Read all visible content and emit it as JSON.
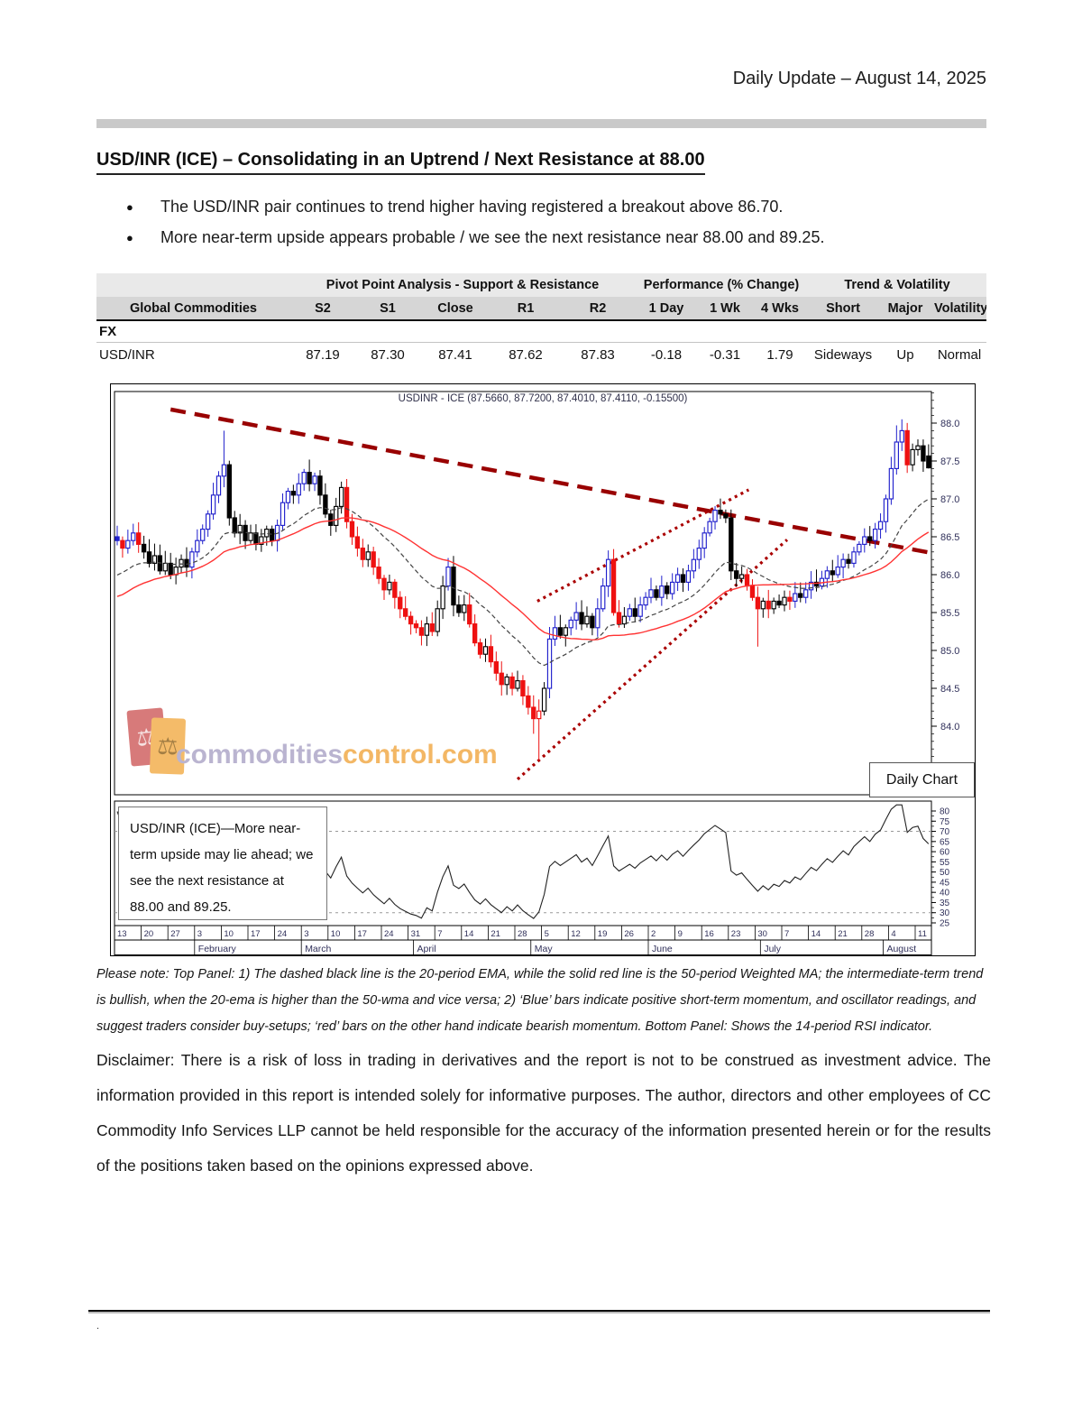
{
  "header": {
    "title": "Daily Update – August 14, 2025"
  },
  "headline": {
    "text": "USD/INR (ICE) – Consolidating in an Uptrend / Next Resistance at 88.00"
  },
  "bullets": [
    "The USD/INR pair continues to trend higher having registered a breakout above 86.70.",
    "More near-term upside appears probable / we see the next resistance near 88.00 and 89.25."
  ],
  "table": {
    "groups": [
      "Pivot Point Analysis - Support & Resistance",
      "Performance (% Change)",
      "Trend & Volatility"
    ],
    "columns": [
      "Global Commodities",
      "S2",
      "S1",
      "Close",
      "R1",
      "R2",
      "1 Day",
      "1 Wk",
      "4 Wks",
      "Short",
      "Major",
      "Volatility"
    ],
    "section": "FX",
    "row": {
      "name": "USD/INR",
      "s2": "87.19",
      "s1": "87.30",
      "close": "87.41",
      "r1": "87.62",
      "r2": "87.83",
      "d1": "-0.18",
      "w1": "-0.31",
      "w4": "1.79",
      "short": "Sideways",
      "major": "Up",
      "vol": "Normal"
    }
  },
  "chart": {
    "title": "USDINR - ICE (87.5660, 87.7200, 87.4010, 87.4110, -0.15500)",
    "daily_chart_label": "Daily Chart",
    "annotation": "USD/INR (ICE)—More near-term upside may lie ahead; we see the next resistance at 88.00 and 89.25.",
    "watermark": {
      "gray": "commodities",
      "orange": "control.com",
      "icon": "⚖"
    }
  },
  "chart_data": {
    "type": "candlestick",
    "title": "USDINR - ICE (87.5660, 87.7200, 87.4010, 87.4110, -0.15500)",
    "last_quote": {
      "open": 87.566,
      "high": 87.72,
      "low": 87.401,
      "close": 87.411,
      "change": -0.155
    },
    "y_axis": {
      "ticks": [
        88.0,
        87.5,
        87.0,
        86.5,
        86.0,
        85.5,
        85.0,
        84.5,
        84.0
      ],
      "range": [
        83.1,
        88.43
      ]
    },
    "rsi_panel": {
      "period": 14,
      "ticks": [
        80,
        75,
        70,
        65,
        60,
        55,
        50,
        45,
        40,
        35,
        30,
        25
      ],
      "upper_band": 70,
      "lower_band": 30
    },
    "indicators": {
      "ema_period": 20,
      "wma_period": 50
    },
    "weeks": [
      [
        "13",
        0
      ],
      [
        "20",
        5
      ],
      [
        "27",
        10
      ],
      [
        "3",
        15
      ],
      [
        "10",
        20
      ],
      [
        "17",
        25
      ],
      [
        "24",
        30
      ],
      [
        "3",
        35
      ],
      [
        "10",
        40
      ],
      [
        "17",
        45
      ],
      [
        "24",
        50
      ],
      [
        "31",
        55
      ],
      [
        "7",
        60
      ],
      [
        "14",
        65
      ],
      [
        "21",
        70
      ],
      [
        "28",
        75
      ],
      [
        "5",
        80
      ],
      [
        "12",
        85
      ],
      [
        "19",
        90
      ],
      [
        "26",
        95
      ],
      [
        "2",
        100
      ],
      [
        "9",
        105
      ],
      [
        "16",
        110
      ],
      [
        "23",
        115
      ],
      [
        "30",
        120
      ],
      [
        "7",
        125
      ],
      [
        "14",
        130
      ],
      [
        "21",
        135
      ],
      [
        "28",
        140
      ],
      [
        "4",
        145
      ],
      [
        "11",
        150
      ]
    ],
    "months": [
      [
        "February",
        15
      ],
      [
        "March",
        35
      ],
      [
        "April",
        56
      ],
      [
        "May",
        78
      ],
      [
        "June",
        100
      ],
      [
        "July",
        121
      ],
      [
        "August",
        144
      ]
    ],
    "candles": {
      "start_open": 86.5,
      "series": [
        [
          86.45,
          "b"
        ],
        [
          86.35,
          "r"
        ],
        [
          86.45,
          "b"
        ],
        [
          86.55,
          "b"
        ],
        [
          86.4,
          "r"
        ],
        [
          86.3,
          "k"
        ],
        [
          86.15,
          "k"
        ],
        [
          86.25,
          "w"
        ],
        [
          86.05,
          "k"
        ],
        [
          86.15,
          "w"
        ],
        [
          86.0,
          "k"
        ],
        [
          86.1,
          "w"
        ],
        [
          86.2,
          "w"
        ],
        [
          86.1,
          "k"
        ],
        [
          86.3,
          "b"
        ],
        [
          86.45,
          "b"
        ],
        [
          86.6,
          "b"
        ],
        [
          86.8,
          "b"
        ],
        [
          87.05,
          "b"
        ],
        [
          87.3,
          "b"
        ],
        [
          87.45,
          "b"
        ],
        [
          86.75,
          "k"
        ],
        [
          86.55,
          "k"
        ],
        [
          86.65,
          "w"
        ],
        [
          86.45,
          "k"
        ],
        [
          86.55,
          "w"
        ],
        [
          86.4,
          "k"
        ],
        [
          86.5,
          "w"
        ],
        [
          86.6,
          "w"
        ],
        [
          86.45,
          "k"
        ],
        [
          86.65,
          "b"
        ],
        [
          86.95,
          "b"
        ],
        [
          87.1,
          "b"
        ],
        [
          87.05,
          "k"
        ],
        [
          87.2,
          "b"
        ],
        [
          87.35,
          "b"
        ],
        [
          87.2,
          "k"
        ],
        [
          87.3,
          "b"
        ],
        [
          87.05,
          "k"
        ],
        [
          86.8,
          "k"
        ],
        [
          86.65,
          "k"
        ],
        [
          86.9,
          "w"
        ],
        [
          87.15,
          "w"
        ],
        [
          86.7,
          "r"
        ],
        [
          86.5,
          "r"
        ],
        [
          86.35,
          "r"
        ],
        [
          86.2,
          "r"
        ],
        [
          86.3,
          "w"
        ],
        [
          86.1,
          "r"
        ],
        [
          85.95,
          "r"
        ],
        [
          85.8,
          "r"
        ],
        [
          85.9,
          "w"
        ],
        [
          85.7,
          "r"
        ],
        [
          85.55,
          "r"
        ],
        [
          85.45,
          "r"
        ],
        [
          85.35,
          "r"
        ],
        [
          85.3,
          "r"
        ],
        [
          85.2,
          "r"
        ],
        [
          85.35,
          "w"
        ],
        [
          85.25,
          "r"
        ],
        [
          85.55,
          "w"
        ],
        [
          85.85,
          "w"
        ],
        [
          86.1,
          "b"
        ],
        [
          85.6,
          "k"
        ],
        [
          85.5,
          "k"
        ],
        [
          85.6,
          "w"
        ],
        [
          85.35,
          "r"
        ],
        [
          85.1,
          "r"
        ],
        [
          84.95,
          "r"
        ],
        [
          85.05,
          "w"
        ],
        [
          84.85,
          "r"
        ],
        [
          84.7,
          "r"
        ],
        [
          84.55,
          "r"
        ],
        [
          84.65,
          "w"
        ],
        [
          84.5,
          "r"
        ],
        [
          84.6,
          "w"
        ],
        [
          84.4,
          "r"
        ],
        [
          84.25,
          "r"
        ],
        [
          84.1,
          "r"
        ],
        [
          84.2,
          "r"
        ],
        [
          84.5,
          "w"
        ],
        [
          85.15,
          "b"
        ],
        [
          85.3,
          "b"
        ],
        [
          85.2,
          "k"
        ],
        [
          85.3,
          "w"
        ],
        [
          85.4,
          "b"
        ],
        [
          85.5,
          "b"
        ],
        [
          85.35,
          "k"
        ],
        [
          85.45,
          "w"
        ],
        [
          85.3,
          "k"
        ],
        [
          85.55,
          "b"
        ],
        [
          85.85,
          "b"
        ],
        [
          86.2,
          "b"
        ],
        [
          85.5,
          "r"
        ],
        [
          85.35,
          "r"
        ],
        [
          85.45,
          "w"
        ],
        [
          85.55,
          "b"
        ],
        [
          85.45,
          "k"
        ],
        [
          85.6,
          "b"
        ],
        [
          85.7,
          "b"
        ],
        [
          85.8,
          "b"
        ],
        [
          85.7,
          "k"
        ],
        [
          85.85,
          "b"
        ],
        [
          85.75,
          "k"
        ],
        [
          85.9,
          "b"
        ],
        [
          86.0,
          "b"
        ],
        [
          85.9,
          "k"
        ],
        [
          86.05,
          "b"
        ],
        [
          86.2,
          "b"
        ],
        [
          86.35,
          "b"
        ],
        [
          86.55,
          "b"
        ],
        [
          86.7,
          "b"
        ],
        [
          86.85,
          "b"
        ],
        [
          86.8,
          "k"
        ],
        [
          86.75,
          "k"
        ],
        [
          86.05,
          "k"
        ],
        [
          85.95,
          "k"
        ],
        [
          86.0,
          "w"
        ],
        [
          85.85,
          "r"
        ],
        [
          85.7,
          "r"
        ],
        [
          85.55,
          "r"
        ],
        [
          85.65,
          "w"
        ],
        [
          85.55,
          "r"
        ],
        [
          85.65,
          "w"
        ],
        [
          85.6,
          "k"
        ],
        [
          85.7,
          "w"
        ],
        [
          85.65,
          "r"
        ],
        [
          85.75,
          "b"
        ],
        [
          85.7,
          "k"
        ],
        [
          85.8,
          "b"
        ],
        [
          85.9,
          "b"
        ],
        [
          85.85,
          "k"
        ],
        [
          85.95,
          "b"
        ],
        [
          86.05,
          "b"
        ],
        [
          86.0,
          "k"
        ],
        [
          86.1,
          "b"
        ],
        [
          86.2,
          "b"
        ],
        [
          86.15,
          "k"
        ],
        [
          86.3,
          "b"
        ],
        [
          86.4,
          "b"
        ],
        [
          86.5,
          "b"
        ],
        [
          86.45,
          "k"
        ],
        [
          86.6,
          "b"
        ],
        [
          86.7,
          "b"
        ],
        [
          87.0,
          "b"
        ],
        [
          87.4,
          "b"
        ],
        [
          87.75,
          "b"
        ],
        [
          87.9,
          "b"
        ],
        [
          87.45,
          "r"
        ],
        [
          87.65,
          "w"
        ],
        [
          87.7,
          "w"
        ],
        [
          87.5,
          "k"
        ],
        [
          87.41,
          "k"
        ]
      ],
      "overrides": {
        "20": {
          "h": 87.9
        },
        "62": {
          "h": 86.22
        },
        "78": {
          "l": 83.9
        },
        "79": {
          "l": 83.55
        },
        "92": {
          "h": 86.32
        },
        "120": {
          "l": 85.05
        },
        "146": {
          "h": 87.97
        },
        "147": {
          "h": 88.05
        },
        "152": {
          "o": 87.566,
          "h": 87.72,
          "l": 87.401
        }
      }
    },
    "trendlines": [
      {
        "name": "downtrend-dashed",
        "style": "dashed",
        "from": [
          10,
          88.18
        ],
        "to": [
          153,
          86.28
        ]
      },
      {
        "name": "channel-upper-dotted",
        "style": "dotted",
        "from": [
          78.7,
          85.65
        ],
        "to": [
          118.3,
          87.12
        ]
      },
      {
        "name": "channel-lower-dotted",
        "style": "dotted",
        "from": [
          75,
          83.3
        ],
        "to": [
          125.5,
          86.46
        ]
      }
    ],
    "colors": {
      "bull_bar": "#2020cc",
      "bear_bar": "#ee1111",
      "neutral_bar": "#000000",
      "wma50": "#ff3333",
      "ema20": "#444444",
      "trend_dashed": "#990000",
      "trend_dotted": "#aa0000",
      "axis_text": "#30305a",
      "rsi_line": "#222222"
    }
  },
  "note": "Please note: Top Panel: 1) The dashed black line is the 20-period EMA, while the solid red line is the 50-period Weighted MA; the intermediate-term trend is bullish, when the 20-ema is higher than the 50-wma and vice versa; 2) ‘Blue’ bars indicate positive short-term momentum, and oscillator readings, and suggest traders consider buy-setups; ‘red’ bars on the other hand indicate bearish momentum. Bottom Panel: Shows the 14-period RSI indicator.",
  "disclaimer": "Disclaimer: There is a risk of loss in trading in derivatives and the report is not to be construed as investment advice. The information provided in this report is intended solely for informative purposes. The author, directors and other employees of CC Commodity Info Services LLP cannot be held responsible for the accuracy of the information presented herein or for the results of the positions taken based on the opinions expressed above.",
  "footer_dot": "."
}
